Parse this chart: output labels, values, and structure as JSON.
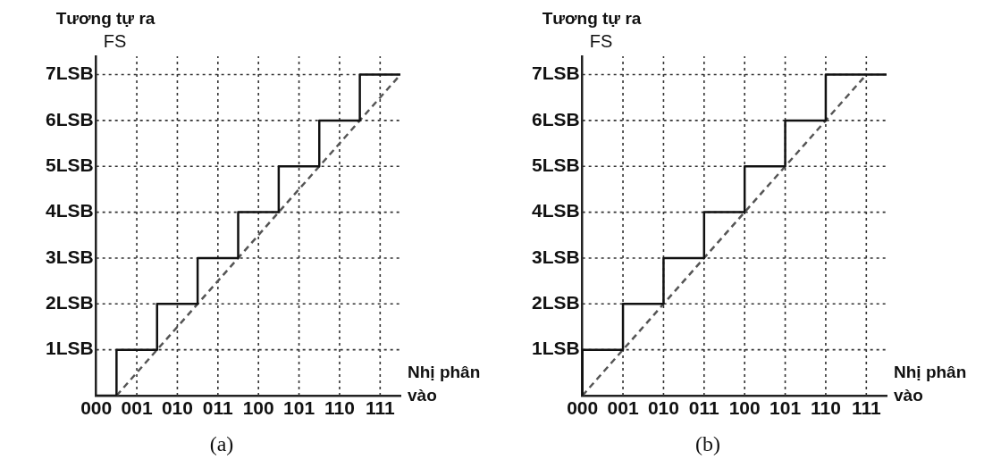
{
  "chart_data": [
    {
      "type": "step",
      "title": "(a)",
      "ylabel": "Tương tự ra",
      "xlabel": "Nhị phân vào",
      "annotations": [
        "FS"
      ],
      "categories": [
        "000",
        null,
        "001",
        null,
        "010",
        null,
        "011",
        null,
        "100",
        null,
        "101",
        null,
        "110",
        null,
        "111",
        null
      ],
      "ylim": [
        0,
        7.4
      ],
      "yticks": [
        {
          "value": 1,
          "label": "1LSB"
        },
        {
          "value": 2,
          "label": "2LSB"
        },
        {
          "value": 3,
          "label": "3LSB"
        },
        {
          "value": 4,
          "label": "4LSB"
        },
        {
          "value": 5,
          "label": "5LSB"
        },
        {
          "value": 6,
          "label": "6LSB"
        },
        {
          "value": 7,
          "label": "7LSB"
        }
      ],
      "grid": true,
      "legend": false,
      "series": [
        {
          "color": "#111111",
          "values": [
            0,
            0,
            1,
            1,
            2,
            2,
            3,
            3,
            4,
            4,
            5,
            5,
            6,
            6,
            7,
            7
          ]
        },
        {
          "type": "line",
          "line_style": "dashed",
          "color": "#555555",
          "values": [
            null,
            0,
            0.5,
            1,
            1.5,
            2,
            2.5,
            3,
            3.5,
            4,
            4.5,
            5,
            5.5,
            6,
            6.5,
            7
          ]
        }
      ]
    },
    {
      "type": "step",
      "title": "(b)",
      "ylabel": "Tương tự ra",
      "xlabel": "Nhị phân vào",
      "annotations": [
        "FS"
      ],
      "categories": [
        "000",
        null,
        "001",
        null,
        "010",
        null,
        "011",
        null,
        "100",
        null,
        "101",
        null,
        "110",
        null,
        "111",
        null
      ],
      "ylim": [
        0,
        7.4
      ],
      "yticks": [
        {
          "value": 1,
          "label": "1LSB"
        },
        {
          "value": 2,
          "label": "2LSB"
        },
        {
          "value": 3,
          "label": "3LSB"
        },
        {
          "value": 4,
          "label": "4LSB"
        },
        {
          "value": 5,
          "label": "5LSB"
        },
        {
          "value": 6,
          "label": "6LSB"
        },
        {
          "value": 7,
          "label": "7LSB"
        }
      ],
      "grid": true,
      "legend": false,
      "series": [
        {
          "color": "#111111",
          "values": [
            0,
            1,
            1,
            2,
            2,
            3,
            3,
            4,
            4,
            5,
            5,
            6,
            6,
            7,
            7,
            7
          ]
        },
        {
          "type": "line",
          "line_style": "dashed",
          "color": "#555555",
          "values": [
            0,
            0.5,
            1,
            1.5,
            2,
            2.5,
            3,
            3.5,
            4,
            4.5,
            5,
            5.5,
            6,
            6.5,
            7,
            null
          ]
        }
      ]
    }
  ]
}
